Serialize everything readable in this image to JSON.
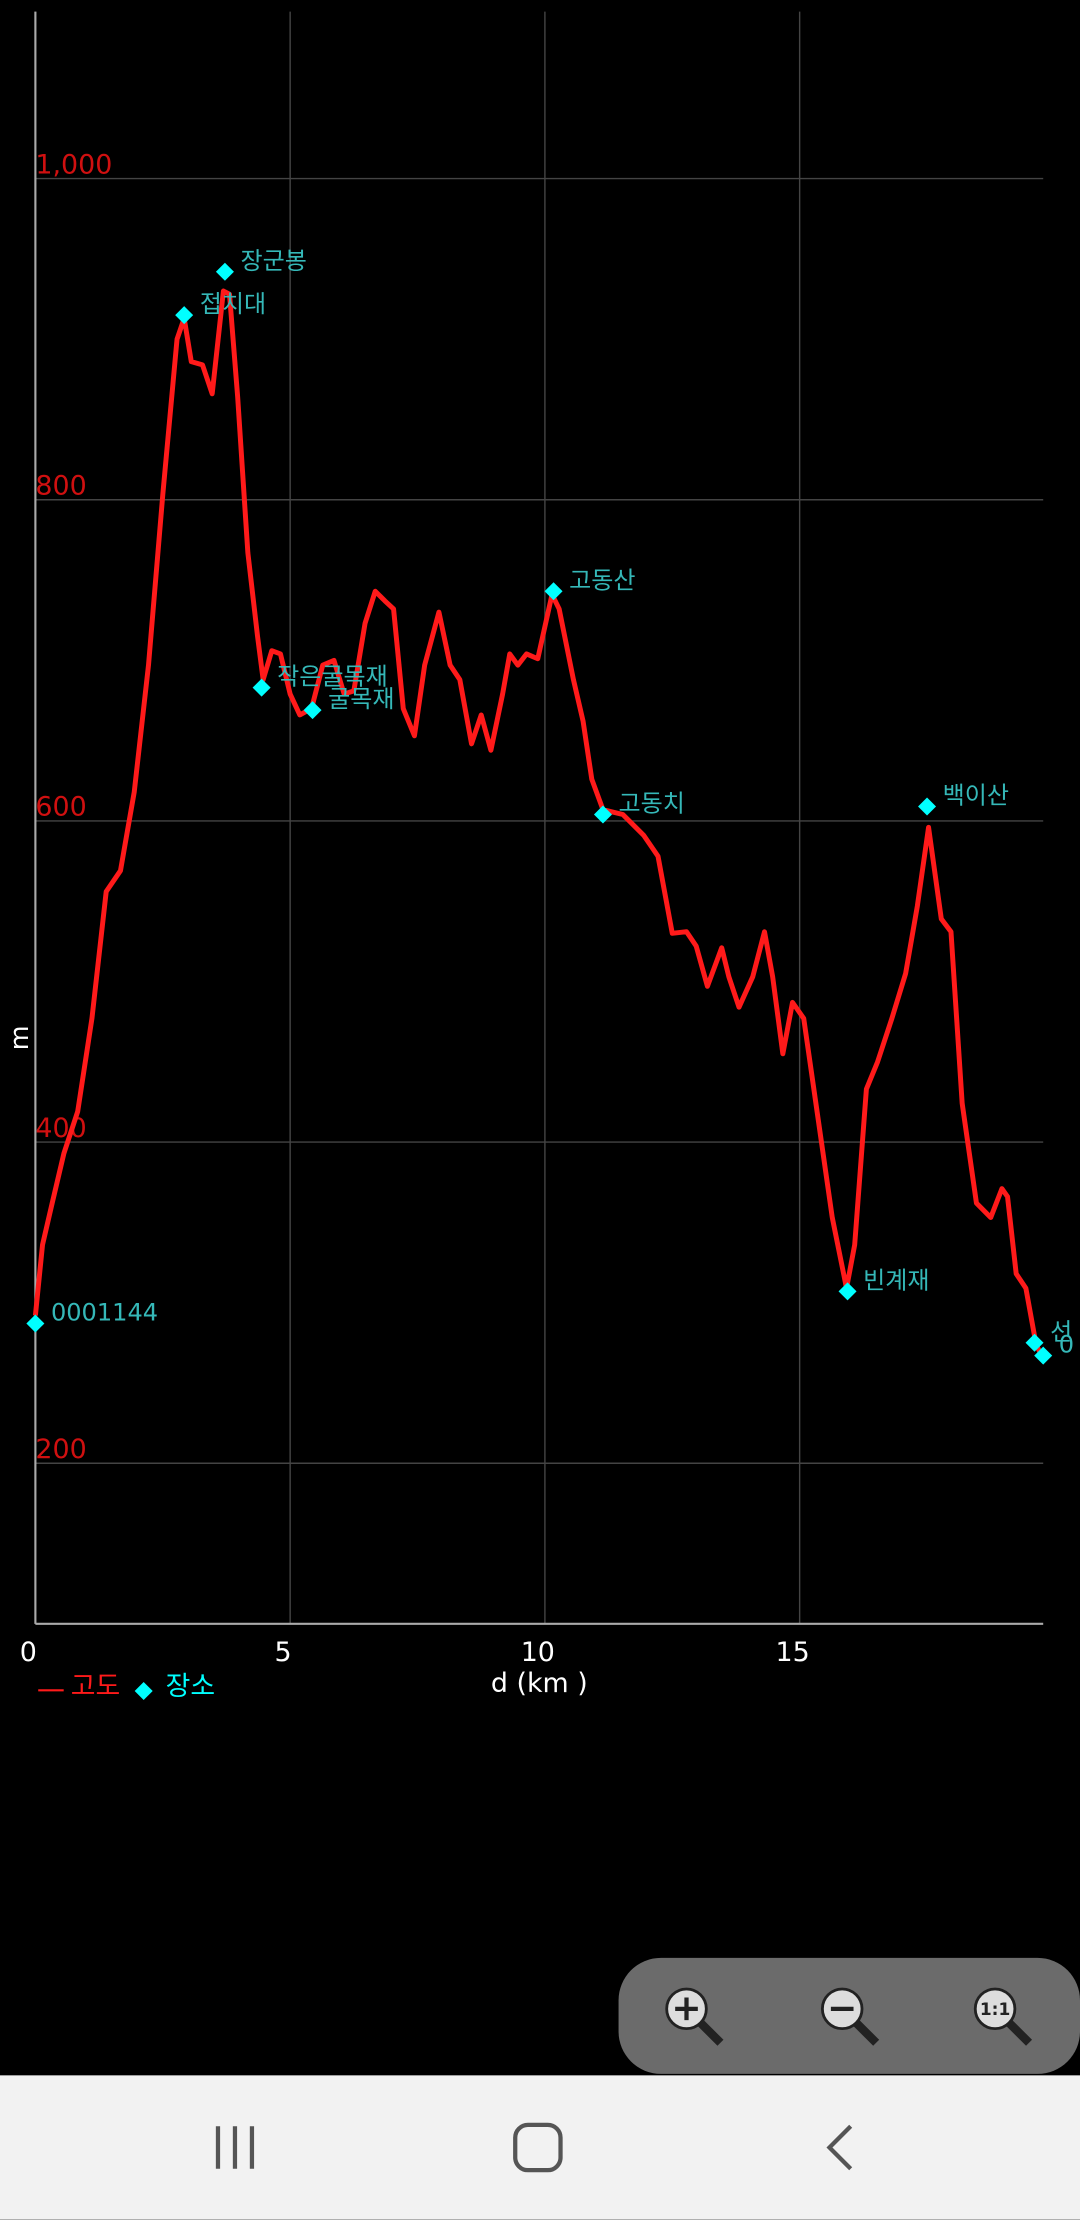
{
  "chart_data": {
    "type": "line",
    "x_label": "d (km )",
    "y_label": "m",
    "xlim": [
      0,
      19.78
    ],
    "ylim": [
      100,
      1104
    ],
    "xticks": [
      0,
      5,
      10,
      15
    ],
    "yticks": [
      200,
      400,
      600,
      800,
      {
        "value": 1000,
        "label": "1,000"
      }
    ],
    "grid": true,
    "series": [
      {
        "name": "고도",
        "color": "#ff1a1a",
        "x": [
          0,
          0.14,
          0.33,
          0.56,
          0.83,
          1.11,
          1.39,
          1.67,
          1.94,
          2.22,
          2.5,
          2.78,
          2.92,
          3.06,
          3.28,
          3.47,
          3.69,
          3.81,
          3.97,
          4.17,
          4.36,
          4.47,
          4.64,
          4.81,
          5.0,
          5.19,
          5.42,
          5.64,
          5.86,
          6.06,
          6.25,
          6.47,
          6.67,
          6.86,
          7.03,
          7.22,
          7.44,
          7.64,
          7.92,
          8.14,
          8.33,
          8.56,
          8.75,
          8.94,
          9.17,
          9.31,
          9.47,
          9.64,
          9.86,
          10.14,
          10.28,
          10.56,
          10.75,
          10.92,
          11.14,
          11.53,
          11.94,
          12.22,
          12.5,
          12.78,
          12.97,
          13.19,
          13.47,
          13.61,
          13.81,
          14.08,
          14.31,
          14.47,
          14.67,
          14.86,
          15.08,
          15.36,
          15.64,
          15.92,
          16.08,
          16.31,
          16.53,
          16.81,
          17.08,
          17.31,
          17.53,
          17.78,
          17.97,
          18.19,
          18.47,
          18.75,
          18.97,
          19.08,
          19.25,
          19.44,
          19.64,
          19.78
        ],
        "values": [
          292,
          336,
          362,
          393,
          419,
          477,
          556,
          569,
          618,
          697,
          803,
          900,
          913,
          886,
          884,
          866,
          930,
          928,
          864,
          767,
          715,
          688,
          706,
          704,
          679,
          666,
          670,
          697,
          700,
          679,
          681,
          723,
          743,
          737,
          732,
          670,
          653,
          697,
          730,
          697,
          688,
          648,
          666,
          644,
          679,
          704,
          697,
          704,
          701,
          741,
          732,
          688,
          662,
          626,
          607,
          604,
          591,
          578,
          530,
          531,
          522,
          497,
          521,
          503,
          484,
          503,
          531,
          503,
          455,
          487,
          477,
          415,
          353,
          309,
          336,
          433,
          450,
          477,
          505,
          547,
          596,
          539,
          531,
          424,
          362,
          353,
          371,
          366,
          318,
          309,
          274,
          265
        ]
      }
    ],
    "places": {
      "name": "장소",
      "color": "#00ffff",
      "x": [
        0,
        2.92,
        3.72,
        4.44,
        5.44,
        10.17,
        11.14,
        15.94,
        17.5,
        19.61,
        19.78
      ],
      "values": [
        287,
        915,
        942,
        683,
        669,
        743,
        604,
        307,
        609,
        275,
        267
      ],
      "labels": [
        "0001144",
        "접치대",
        "장군봉",
        "작은굴목재",
        "굴목재",
        "고동산",
        "고동치",
        "빈계재",
        "백이산",
        "선",
        "0"
      ]
    }
  },
  "zoom_controls": {
    "reset_label": "1:1"
  }
}
